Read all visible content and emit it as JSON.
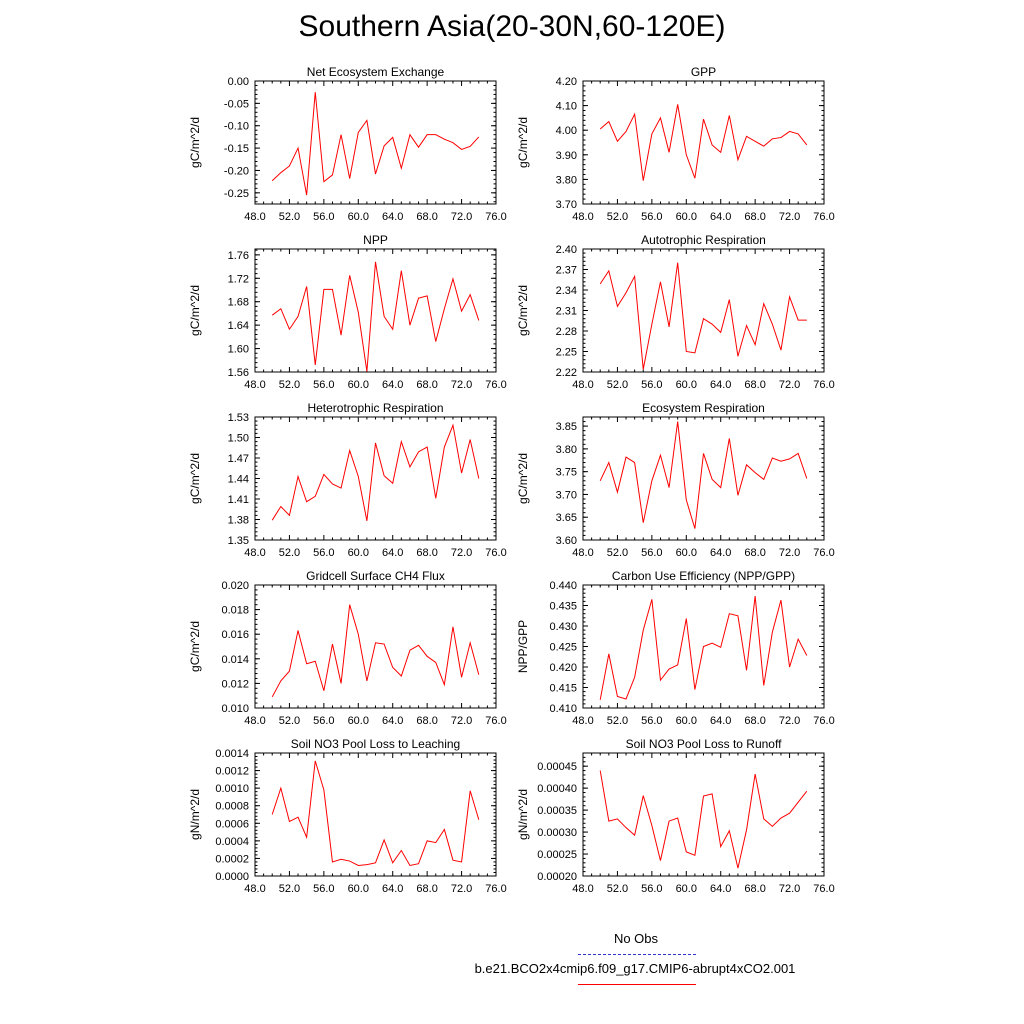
{
  "figure": {
    "title": "Southern Asia(20-30N,60-120E)",
    "series_color": "#ff0000",
    "obs_color": "#3333cc"
  },
  "legend": {
    "obs_label": "No Obs",
    "model_label": "b.e21.BCO2x4cmip6.f09_g17.CMIP6-abrupt4xCO2.001"
  },
  "chart_data": [
    {
      "type": "line",
      "title": "Net Ecosystem Exchange",
      "ylabel": "gC/m^2/d",
      "xlim": [
        48,
        76
      ],
      "ylim": [
        -0.275,
        0.0
      ],
      "xticks": [
        "48.0",
        "52.0",
        "56.0",
        "60.0",
        "64.0",
        "68.0",
        "72.0",
        "76.0"
      ],
      "yticks": [
        "0.00",
        "-0.05",
        "-0.10",
        "-0.15",
        "-0.20",
        "-0.25"
      ],
      "ytick_values": [
        0.0,
        -0.05,
        -0.1,
        -0.15,
        -0.2,
        -0.25
      ],
      "x": [
        50,
        51,
        52,
        53,
        54,
        55,
        56,
        57,
        58,
        59,
        60,
        61,
        62,
        63,
        64,
        65,
        66,
        67,
        68,
        69,
        70,
        71,
        72,
        73,
        74
      ],
      "y": [
        -0.223,
        -0.205,
        -0.19,
        -0.15,
        -0.255,
        -0.025,
        -0.225,
        -0.21,
        -0.12,
        -0.218,
        -0.115,
        -0.088,
        -0.208,
        -0.145,
        -0.126,
        -0.195,
        -0.12,
        -0.148,
        -0.12,
        -0.12,
        -0.13,
        -0.138,
        -0.153,
        -0.146,
        -0.125
      ]
    },
    {
      "type": "line",
      "title": "GPP",
      "ylabel": "gC/m^2/d",
      "xlim": [
        48,
        76
      ],
      "ylim": [
        3.7,
        4.2
      ],
      "xticks": [
        "48.0",
        "52.0",
        "56.0",
        "60.0",
        "64.0",
        "68.0",
        "72.0",
        "76.0"
      ],
      "yticks": [
        "4.20",
        "4.10",
        "4.00",
        "3.90",
        "3.80",
        "3.70"
      ],
      "ytick_values": [
        4.2,
        4.1,
        4.0,
        3.9,
        3.8,
        3.7
      ],
      "x": [
        50,
        51,
        52,
        53,
        54,
        55,
        56,
        57,
        58,
        59,
        60,
        61,
        62,
        63,
        64,
        65,
        66,
        67,
        68,
        69,
        70,
        71,
        72,
        73,
        74
      ],
      "y": [
        4.005,
        4.035,
        3.955,
        3.995,
        4.065,
        3.795,
        3.985,
        4.05,
        3.91,
        4.105,
        3.9,
        3.805,
        4.045,
        3.94,
        3.91,
        4.06,
        3.88,
        3.975,
        3.955,
        3.935,
        3.965,
        3.97,
        3.995,
        3.985,
        3.94
      ]
    },
    {
      "type": "line",
      "title": "NPP",
      "ylabel": "gC/m^2/d",
      "xlim": [
        48,
        76
      ],
      "ylim": [
        1.56,
        1.77
      ],
      "xticks": [
        "48.0",
        "52.0",
        "56.0",
        "60.0",
        "64.0",
        "68.0",
        "72.0",
        "76.0"
      ],
      "yticks": [
        "1.76",
        "1.72",
        "1.68",
        "1.64",
        "1.60",
        "1.56"
      ],
      "ytick_values": [
        1.76,
        1.72,
        1.68,
        1.64,
        1.6,
        1.56
      ],
      "x": [
        50,
        51,
        52,
        53,
        54,
        55,
        56,
        57,
        58,
        59,
        60,
        61,
        62,
        63,
        64,
        65,
        66,
        67,
        68,
        69,
        70,
        71,
        72,
        73,
        74
      ],
      "y": [
        1.657,
        1.668,
        1.633,
        1.655,
        1.706,
        1.572,
        1.701,
        1.701,
        1.623,
        1.725,
        1.662,
        1.561,
        1.748,
        1.655,
        1.633,
        1.733,
        1.64,
        1.686,
        1.69,
        1.612,
        1.668,
        1.719,
        1.664,
        1.692,
        1.648
      ]
    },
    {
      "type": "line",
      "title": "Autotrophic Respiration",
      "ylabel": "gC/m^2/d",
      "xlim": [
        48,
        76
      ],
      "ylim": [
        2.22,
        2.4
      ],
      "xticks": [
        "48.0",
        "52.0",
        "56.0",
        "60.0",
        "64.0",
        "68.0",
        "72.0",
        "76.0"
      ],
      "yticks": [
        "2.40",
        "2.37",
        "2.34",
        "2.31",
        "2.28",
        "2.25",
        "2.22"
      ],
      "ytick_values": [
        2.4,
        2.37,
        2.34,
        2.31,
        2.28,
        2.25,
        2.22
      ],
      "x": [
        50,
        51,
        52,
        53,
        54,
        55,
        56,
        57,
        58,
        59,
        60,
        61,
        62,
        63,
        64,
        65,
        66,
        67,
        68,
        69,
        70,
        71,
        72,
        73,
        74
      ],
      "y": [
        2.349,
        2.368,
        2.316,
        2.336,
        2.36,
        2.224,
        2.29,
        2.352,
        2.286,
        2.38,
        2.25,
        2.248,
        2.298,
        2.29,
        2.278,
        2.326,
        2.243,
        2.288,
        2.26,
        2.32,
        2.29,
        2.252,
        2.33,
        2.296,
        2.296
      ]
    },
    {
      "type": "line",
      "title": "Heterotrophic Respiration",
      "ylabel": "gC/m^2/d",
      "xlim": [
        48,
        76
      ],
      "ylim": [
        1.35,
        1.53
      ],
      "xticks": [
        "48.0",
        "52.0",
        "56.0",
        "60.0",
        "64.0",
        "68.0",
        "72.0",
        "76.0"
      ],
      "yticks": [
        "1.53",
        "1.50",
        "1.47",
        "1.44",
        "1.41",
        "1.38",
        "1.35"
      ],
      "ytick_values": [
        1.53,
        1.5,
        1.47,
        1.44,
        1.41,
        1.38,
        1.35
      ],
      "x": [
        50,
        51,
        52,
        53,
        54,
        55,
        56,
        57,
        58,
        59,
        60,
        61,
        62,
        63,
        64,
        65,
        66,
        67,
        68,
        69,
        70,
        71,
        72,
        73,
        74
      ],
      "y": [
        1.379,
        1.399,
        1.386,
        1.443,
        1.406,
        1.414,
        1.446,
        1.432,
        1.426,
        1.481,
        1.443,
        1.378,
        1.492,
        1.444,
        1.433,
        1.494,
        1.457,
        1.479,
        1.486,
        1.411,
        1.486,
        1.518,
        1.448,
        1.497,
        1.44
      ]
    },
    {
      "type": "line",
      "title": "Ecosystem Respiration",
      "ylabel": "gC/m^2/d",
      "xlim": [
        48,
        76
      ],
      "ylim": [
        3.6,
        3.87
      ],
      "xticks": [
        "48.0",
        "52.0",
        "56.0",
        "60.0",
        "64.0",
        "68.0",
        "72.0",
        "76.0"
      ],
      "yticks": [
        "3.85",
        "3.80",
        "3.75",
        "3.70",
        "3.65",
        "3.60"
      ],
      "ytick_values": [
        3.85,
        3.8,
        3.75,
        3.7,
        3.65,
        3.6
      ],
      "x": [
        50,
        51,
        52,
        53,
        54,
        55,
        56,
        57,
        58,
        59,
        60,
        61,
        62,
        63,
        64,
        65,
        66,
        67,
        68,
        69,
        70,
        71,
        72,
        73,
        74
      ],
      "y": [
        3.73,
        3.77,
        3.705,
        3.782,
        3.77,
        3.638,
        3.73,
        3.786,
        3.715,
        3.86,
        3.688,
        3.625,
        3.79,
        3.733,
        3.715,
        3.823,
        3.698,
        3.765,
        3.748,
        3.733,
        3.78,
        3.773,
        3.778,
        3.79,
        3.735
      ]
    },
    {
      "type": "line",
      "title": "Gridcell Surface CH4 Flux",
      "ylabel": "gC/m^2/d",
      "xlim": [
        48,
        76
      ],
      "ylim": [
        0.01,
        0.02
      ],
      "xticks": [
        "48.0",
        "52.0",
        "56.0",
        "60.0",
        "64.0",
        "68.0",
        "72.0",
        "76.0"
      ],
      "yticks": [
        "0.020",
        "0.018",
        "0.016",
        "0.014",
        "0.012",
        "0.010"
      ],
      "ytick_values": [
        0.02,
        0.018,
        0.016,
        0.014,
        0.012,
        0.01
      ],
      "x": [
        50,
        51,
        52,
        53,
        54,
        55,
        56,
        57,
        58,
        59,
        60,
        61,
        62,
        63,
        64,
        65,
        66,
        67,
        68,
        69,
        70,
        71,
        72,
        73,
        74
      ],
      "y": [
        0.0109,
        0.0122,
        0.013,
        0.0163,
        0.0136,
        0.0138,
        0.0114,
        0.0152,
        0.012,
        0.0184,
        0.016,
        0.0122,
        0.0153,
        0.0152,
        0.0133,
        0.0126,
        0.0147,
        0.0151,
        0.0142,
        0.0137,
        0.0119,
        0.0166,
        0.0125,
        0.0153,
        0.0127
      ]
    },
    {
      "type": "line",
      "title": "Carbon Use Efficiency (NPP/GPP)",
      "ylabel": "NPP/GPP",
      "xlim": [
        48,
        76
      ],
      "ylim": [
        0.41,
        0.44
      ],
      "xticks": [
        "48.0",
        "52.0",
        "56.0",
        "60.0",
        "64.0",
        "68.0",
        "72.0",
        "76.0"
      ],
      "yticks": [
        "0.440",
        "0.435",
        "0.430",
        "0.425",
        "0.420",
        "0.415",
        "0.410"
      ],
      "ytick_values": [
        0.44,
        0.435,
        0.43,
        0.425,
        0.42,
        0.415,
        0.41
      ],
      "x": [
        50,
        51,
        52,
        53,
        54,
        55,
        56,
        57,
        58,
        59,
        60,
        61,
        62,
        63,
        64,
        65,
        66,
        67,
        68,
        69,
        70,
        71,
        72,
        73,
        74
      ],
      "y": [
        0.412,
        0.4232,
        0.4128,
        0.4122,
        0.4175,
        0.429,
        0.4365,
        0.4168,
        0.4195,
        0.4205,
        0.4318,
        0.4145,
        0.425,
        0.4258,
        0.4248,
        0.433,
        0.4325,
        0.4192,
        0.4373,
        0.4155,
        0.4285,
        0.4363,
        0.42,
        0.4268,
        0.4228
      ]
    },
    {
      "type": "line",
      "title": "Soil NO3 Pool Loss to Leaching",
      "ylabel": "gN/m^2/d",
      "xlim": [
        48,
        76
      ],
      "ylim": [
        0.0,
        0.0014
      ],
      "xticks": [
        "48.0",
        "52.0",
        "56.0",
        "60.0",
        "64.0",
        "68.0",
        "72.0",
        "76.0"
      ],
      "yticks": [
        "0.0014",
        "0.0012",
        "0.0010",
        "0.0008",
        "0.0006",
        "0.0004",
        "0.0002",
        "0.0000"
      ],
      "ytick_values": [
        0.0014,
        0.0012,
        0.001,
        0.0008,
        0.0006,
        0.0004,
        0.0002,
        0.0
      ],
      "x": [
        50,
        51,
        52,
        53,
        54,
        55,
        56,
        57,
        58,
        59,
        60,
        61,
        62,
        63,
        64,
        65,
        66,
        67,
        68,
        69,
        70,
        71,
        72,
        73,
        74
      ],
      "y": [
        0.0007,
        0.001,
        0.00062,
        0.00067,
        0.00044,
        0.00131,
        0.00098,
        0.00016,
        0.00019,
        0.00017,
        0.00012,
        0.00013,
        0.00015,
        0.00041,
        0.00015,
        0.00029,
        0.00012,
        0.00014,
        0.0004,
        0.00038,
        0.00053,
        0.00018,
        0.00016,
        0.00097,
        0.00064
      ]
    },
    {
      "type": "line",
      "title": "Soil NO3 Pool Loss to Runoff",
      "ylabel": "gN/m^2/d",
      "xlim": [
        48,
        76
      ],
      "ylim": [
        0.0002,
        0.00048
      ],
      "xticks": [
        "48.0",
        "52.0",
        "56.0",
        "60.0",
        "64.0",
        "68.0",
        "72.0",
        "76.0"
      ],
      "yticks": [
        "0.00045",
        "0.00040",
        "0.00035",
        "0.00030",
        "0.00025",
        "0.00020"
      ],
      "ytick_values": [
        0.00045,
        0.0004,
        0.00035,
        0.0003,
        0.00025,
        0.0002
      ],
      "x": [
        50,
        51,
        52,
        53,
        54,
        55,
        56,
        57,
        58,
        59,
        60,
        61,
        62,
        63,
        64,
        65,
        66,
        67,
        68,
        69,
        70,
        71,
        72,
        73,
        74
      ],
      "y": [
        0.00044,
        0.000325,
        0.00033,
        0.00031,
        0.000293,
        0.000383,
        0.000315,
        0.000235,
        0.000325,
        0.000332,
        0.000255,
        0.000247,
        0.000382,
        0.000387,
        0.000267,
        0.000303,
        0.000218,
        0.000305,
        0.000432,
        0.00033,
        0.000313,
        0.000332,
        0.000343,
        0.000368,
        0.000393
      ]
    }
  ]
}
